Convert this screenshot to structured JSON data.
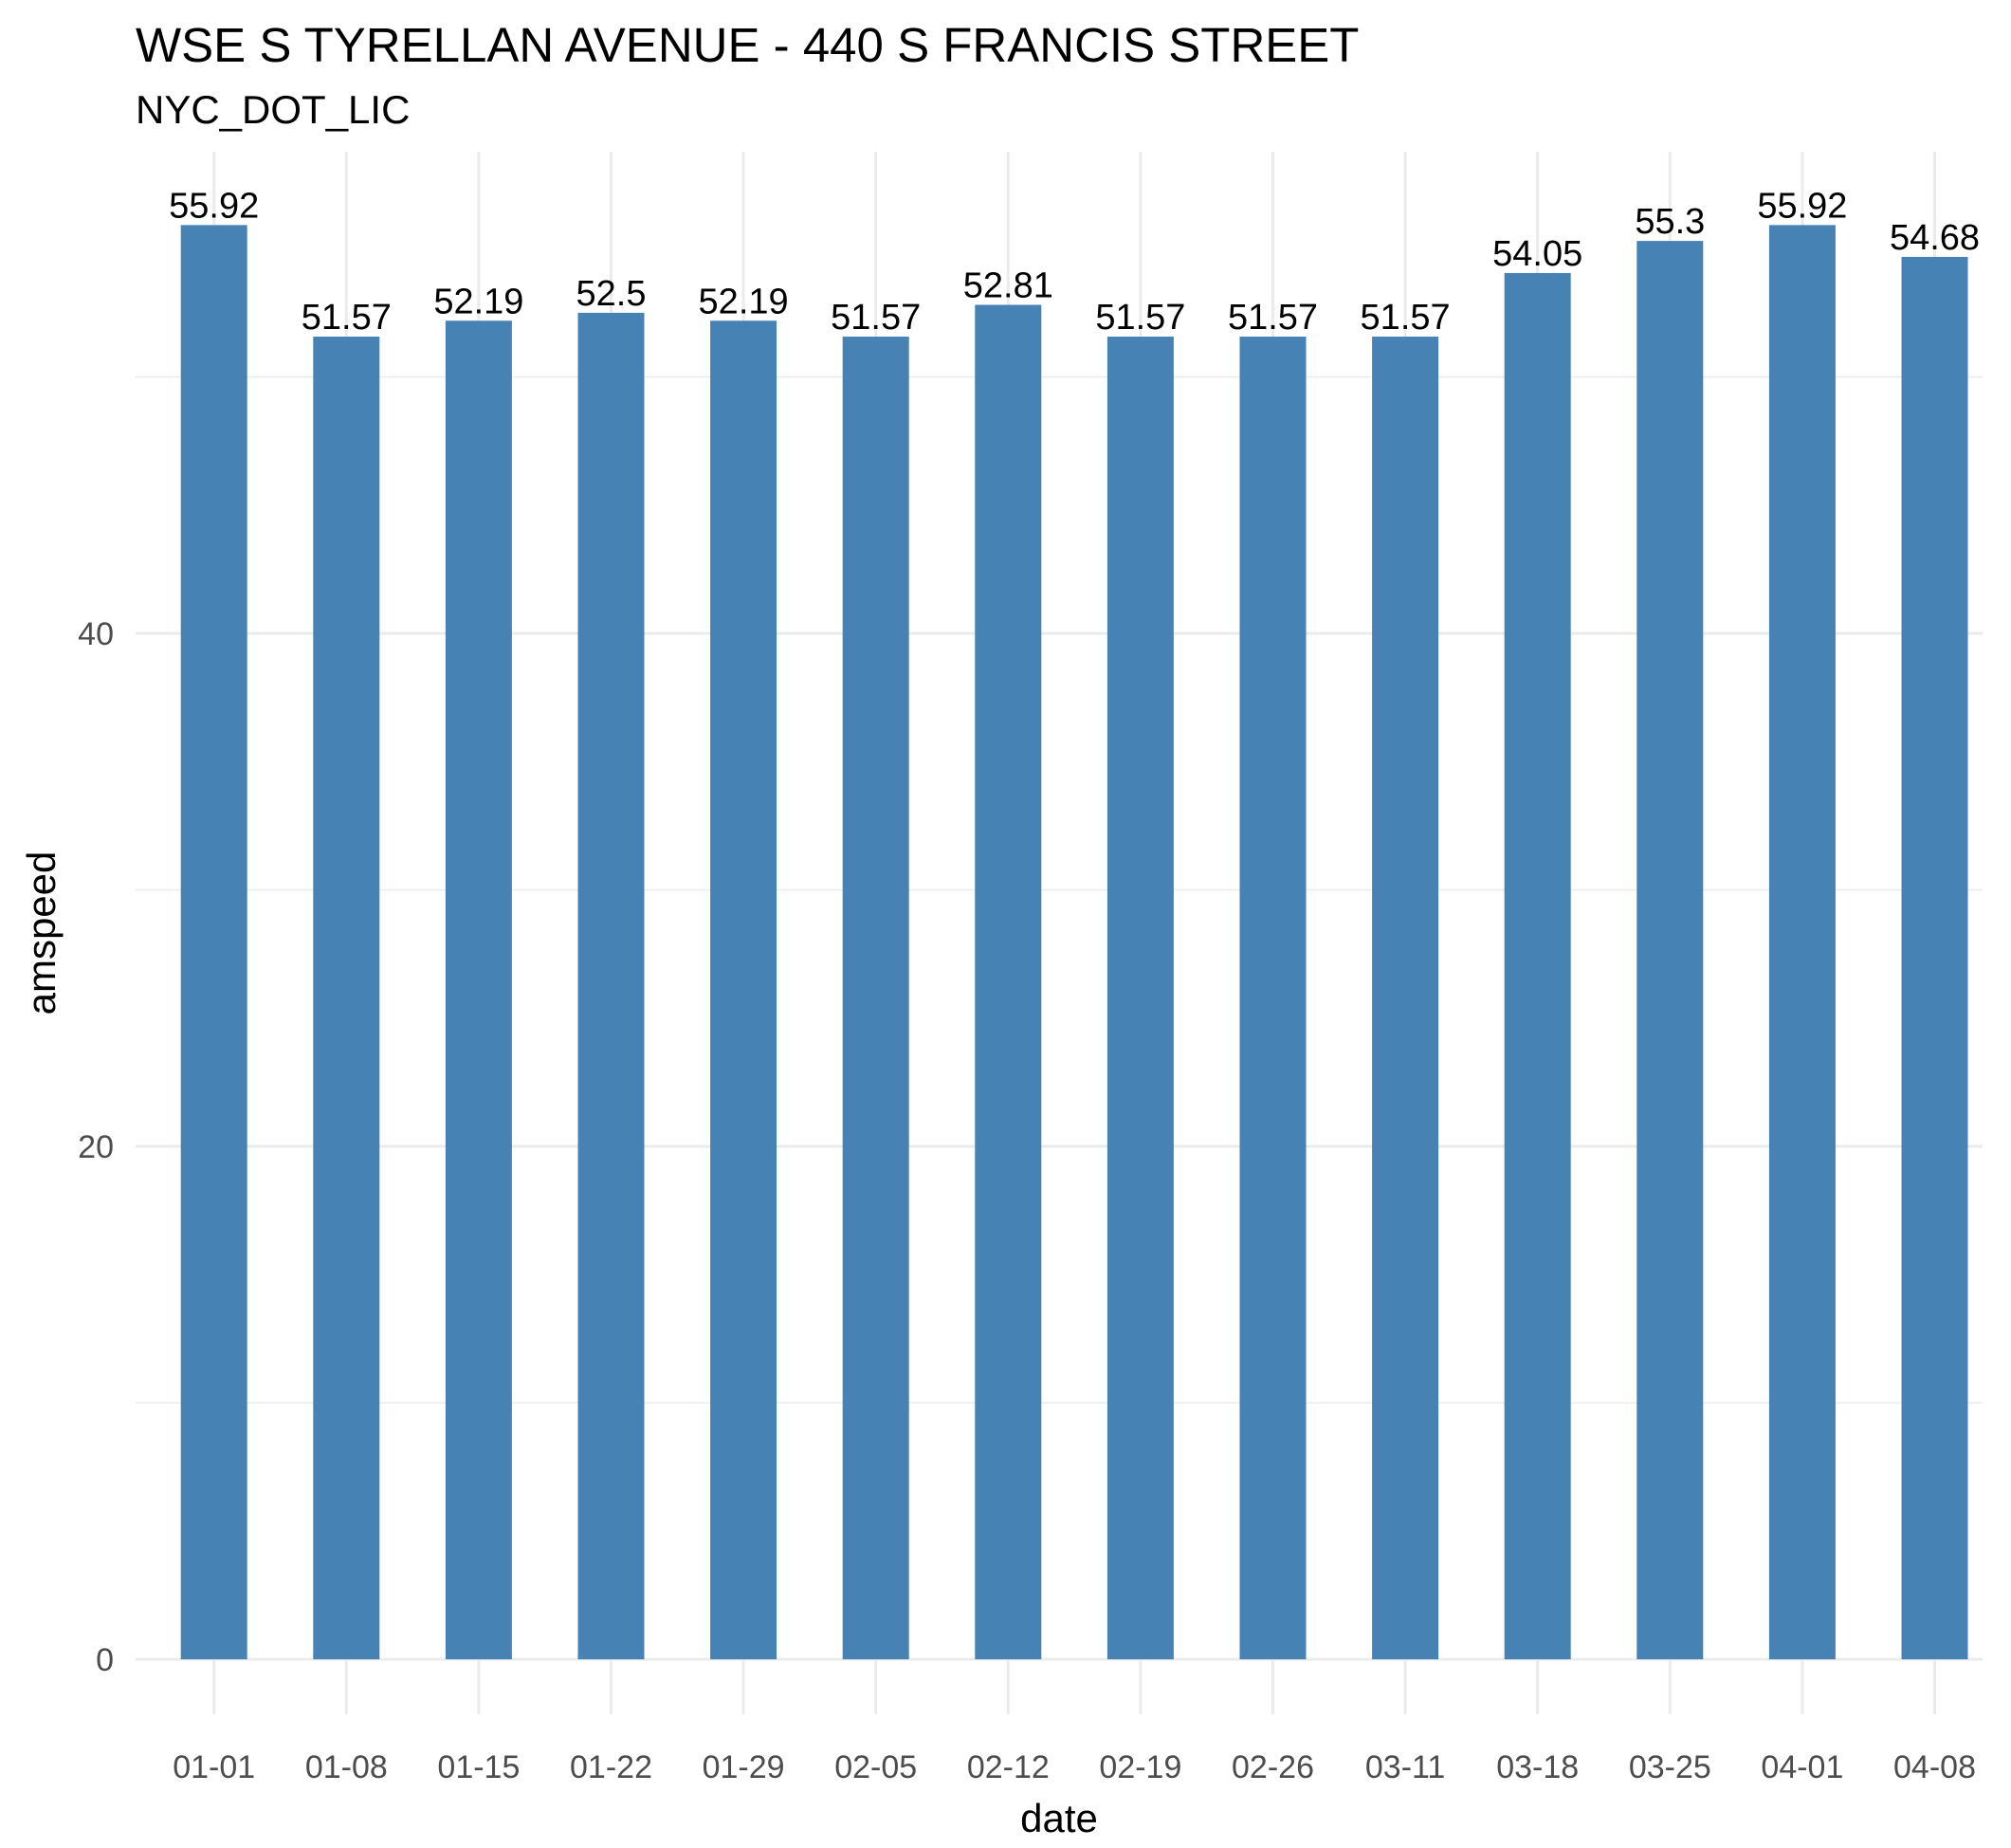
{
  "chart_data": {
    "type": "bar",
    "title": "WSE S TYRELLAN AVENUE - 440 S FRANCIS STREET",
    "subtitle": "NYC_DOT_LIC",
    "xlabel": "date",
    "ylabel": "amspeed",
    "categories": [
      "01-01",
      "01-08",
      "01-15",
      "01-22",
      "01-29",
      "02-05",
      "02-12",
      "02-19",
      "02-26",
      "03-11",
      "03-18",
      "03-25",
      "04-01",
      "04-08"
    ],
    "values": [
      55.92,
      51.57,
      52.19,
      52.5,
      52.19,
      51.57,
      52.81,
      51.57,
      51.57,
      51.57,
      54.05,
      55.3,
      55.92,
      54.68
    ],
    "data_labels": [
      "55.92",
      "51.57",
      "52.19",
      "52.5",
      "52.19",
      "51.57",
      "52.81",
      "51.57",
      "51.57",
      "51.57",
      "54.05",
      "55.3",
      "55.92",
      "54.68"
    ],
    "y_ticks": [
      0,
      20,
      40
    ],
    "y_tick_labels": [
      "0",
      "20",
      "40"
    ],
    "ylim": [
      0,
      56
    ],
    "grid": true,
    "legend": "none",
    "bar_color": "#4682B4",
    "grid_color": "#EBEBEB",
    "background": "#FFFFFF"
  }
}
